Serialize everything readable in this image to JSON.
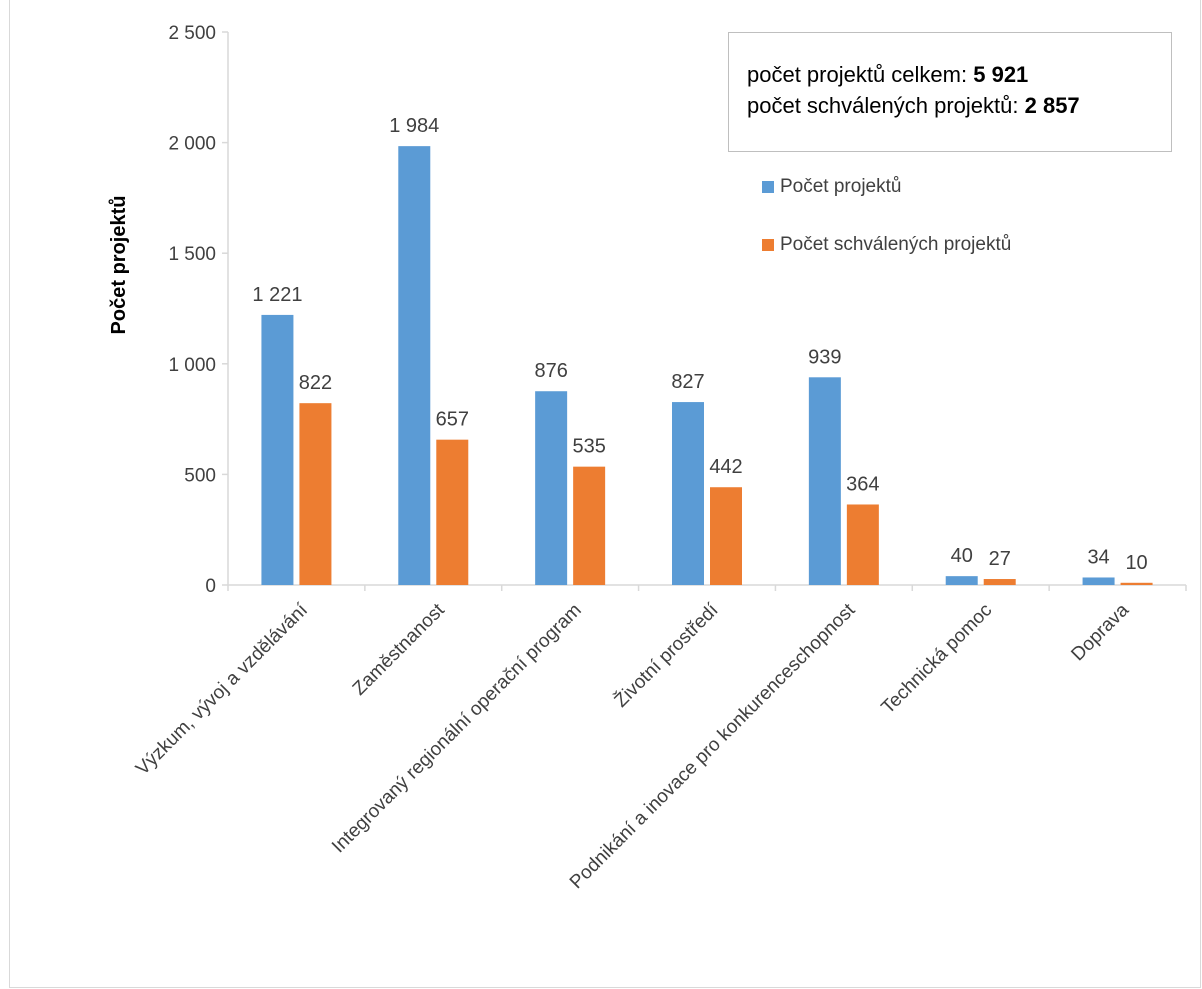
{
  "title": "",
  "totals": {
    "total_label": "počet projektů celkem: ",
    "total_value": "5 921",
    "approved_label": "počet schválených projektů: ",
    "approved_value": "2 857"
  },
  "colors": {
    "series_total": "#5b9bd5",
    "series_approved": "#ed7d31",
    "axis": "#d9d9d9",
    "text": "#404040"
  },
  "chart_data": {
    "type": "bar",
    "categories": [
      "Výzkum, vývoj a vzdělávání",
      "Zaměstnanost",
      "Integrovaný regionální operační program",
      "Životní prostředí",
      "Podnikání a inovace pro konkurenceschopnost",
      "Technická pomoc",
      "Doprava"
    ],
    "series": [
      {
        "name": "Počet projektů",
        "values": [
          1221,
          1984,
          876,
          827,
          939,
          40,
          34
        ],
        "labels": [
          "1 221",
          "1 984",
          "876",
          "827",
          "939",
          "40",
          "34"
        ]
      },
      {
        "name": "Počet schválených projektů",
        "values": [
          822,
          657,
          535,
          442,
          364,
          27,
          10
        ],
        "labels": [
          "822",
          "657",
          "535",
          "442",
          "364",
          "27",
          "10"
        ]
      }
    ],
    "ylabel": "Počet projektů",
    "xlabel": "",
    "ylim": [
      0,
      2500
    ],
    "yticks": [
      0,
      500,
      1000,
      1500,
      2000,
      2500
    ],
    "ytick_labels": [
      "0",
      "500",
      "1 000",
      "1 500",
      "2 000",
      "2 500"
    ],
    "grid": false,
    "legend_position": "top-right"
  }
}
